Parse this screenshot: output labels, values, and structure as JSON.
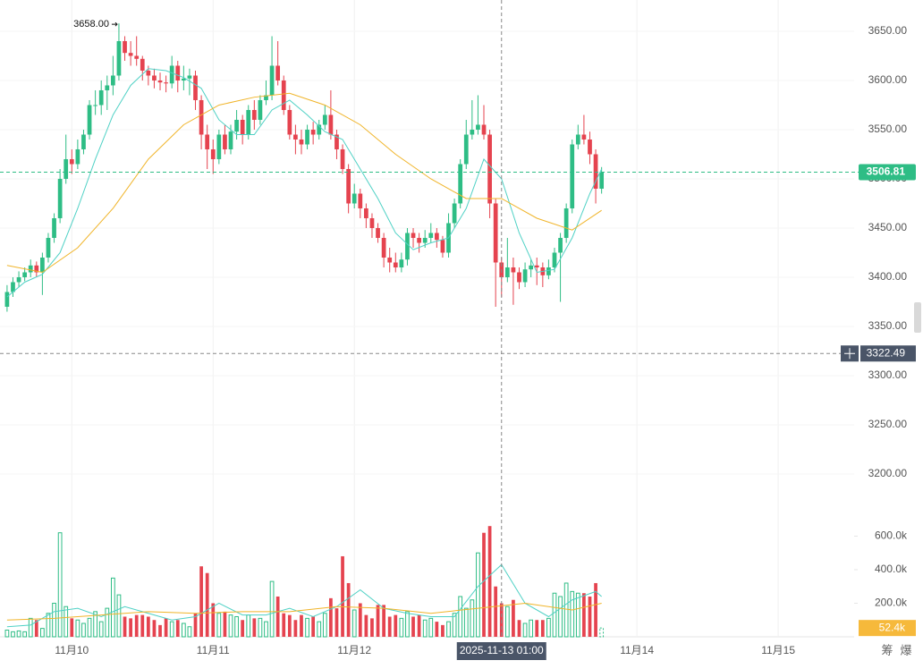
{
  "chart_data": {
    "type": "candlestick",
    "up_color": "#2ebd85",
    "down_color": "#e5434f",
    "grid": true,
    "xlim": [
      -1.2,
      143.9
    ],
    "xticks": [
      {
        "value": 11,
        "label": "11月10"
      },
      {
        "value": 35,
        "label": "11月11"
      },
      {
        "value": 59,
        "label": "11月12"
      },
      {
        "value": 107,
        "label": "11月14"
      },
      {
        "value": 131,
        "label": "11月15"
      }
    ],
    "ylim": [
      3150,
      3681.8
    ],
    "yticks": [
      {
        "value": 3200,
        "label": "3200.00"
      },
      {
        "value": 3250,
        "label": "3250.00"
      },
      {
        "value": 3300,
        "label": "3300.00"
      },
      {
        "value": 3350,
        "label": "3350.00"
      },
      {
        "value": 3400,
        "label": "3400.00"
      },
      {
        "value": 3450,
        "label": "3450.00"
      },
      {
        "value": 3500,
        "label": "3500.00"
      },
      {
        "value": 3550,
        "label": "3550.00"
      },
      {
        "value": 3600,
        "label": "3600.00"
      },
      {
        "value": 3650,
        "label": "3650.00"
      }
    ],
    "vlim": [
      0,
      677
    ],
    "vticks": [
      {
        "value": 200,
        "label": "200.0k"
      },
      {
        "value": 400,
        "label": "400.0k"
      },
      {
        "value": 600,
        "label": "600.0k"
      }
    ],
    "open": [
      3370,
      3385,
      3395,
      3400,
      3405,
      3412,
      3405,
      3420,
      3440,
      3460,
      3500,
      3520,
      3515,
      3530,
      3545,
      3575,
      3575,
      3590,
      3595,
      3605,
      3640,
      3628,
      3625,
      3622,
      3610,
      3605,
      3600,
      3598,
      3597,
      3615,
      3600,
      3602,
      3605,
      3580,
      3545,
      3530,
      3520,
      3545,
      3530,
      3548,
      3560,
      3545,
      3570,
      3560,
      3580,
      3585,
      3615,
      3600,
      3570,
      3545,
      3540,
      3535,
      3550,
      3545,
      3555,
      3565,
      3545,
      3530,
      3510,
      3475,
      3485,
      3470,
      3460,
      3450,
      3440,
      3420,
      3415,
      3410,
      3418,
      3445,
      3440,
      3435,
      3440,
      3445,
      3438,
      3425,
      3455,
      3475,
      3515,
      3545,
      3550,
      3555,
      3545,
      3475,
      3415,
      3400,
      3410,
      3405,
      3395,
      3408,
      3412,
      3410,
      3402,
      3410,
      3425,
      3440,
      3470,
      3535,
      3545,
      3540,
      3525,
      3490
    ],
    "high": [
      3392,
      3400,
      3406,
      3410,
      3418,
      3416,
      3425,
      3445,
      3465,
      3510,
      3545,
      3530,
      3540,
      3550,
      3580,
      3590,
      3600,
      3605,
      3625,
      3658,
      3645,
      3640,
      3645,
      3625,
      3615,
      3612,
      3608,
      3605,
      3625,
      3620,
      3615,
      3612,
      3610,
      3585,
      3555,
      3540,
      3550,
      3555,
      3555,
      3570,
      3565,
      3575,
      3580,
      3585,
      3600,
      3645,
      3640,
      3605,
      3575,
      3555,
      3550,
      3555,
      3558,
      3560,
      3575,
      3590,
      3550,
      3535,
      3515,
      3495,
      3490,
      3475,
      3465,
      3455,
      3445,
      3430,
      3425,
      3425,
      3450,
      3450,
      3445,
      3448,
      3455,
      3450,
      3442,
      3465,
      3480,
      3520,
      3560,
      3580,
      3585,
      3575,
      3550,
      3480,
      3420,
      3440,
      3420,
      3410,
      3415,
      3418,
      3420,
      3415,
      3418,
      3430,
      3445,
      3475,
      3540,
      3555,
      3565,
      3548,
      3530,
      3512
    ],
    "low": [
      3365,
      3380,
      3390,
      3396,
      3400,
      3400,
      3382,
      3415,
      3435,
      3455,
      3495,
      3505,
      3510,
      3525,
      3540,
      3565,
      3565,
      3570,
      3585,
      3600,
      3620,
      3615,
      3615,
      3600,
      3595,
      3592,
      3590,
      3588,
      3592,
      3588,
      3590,
      3585,
      3570,
      3530,
      3510,
      3505,
      3515,
      3525,
      3525,
      3540,
      3535,
      3540,
      3550,
      3555,
      3575,
      3580,
      3595,
      3565,
      3540,
      3525,
      3525,
      3530,
      3535,
      3540,
      3550,
      3540,
      3520,
      3505,
      3465,
      3470,
      3460,
      3450,
      3440,
      3435,
      3410,
      3405,
      3405,
      3405,
      3412,
      3430,
      3425,
      3430,
      3435,
      3430,
      3420,
      3420,
      3450,
      3470,
      3510,
      3540,
      3545,
      3540,
      3460,
      3370,
      3380,
      3395,
      3372,
      3388,
      3390,
      3400,
      3392,
      3390,
      3398,
      3405,
      3375,
      3435,
      3465,
      3530,
      3535,
      3515,
      3475,
      3485
    ],
    "close": [
      3385,
      3395,
      3400,
      3405,
      3412,
      3405,
      3420,
      3440,
      3460,
      3500,
      3520,
      3515,
      3530,
      3545,
      3575,
      3575,
      3590,
      3595,
      3605,
      3640,
      3628,
      3625,
      3622,
      3610,
      3605,
      3600,
      3598,
      3597,
      3615,
      3600,
      3602,
      3605,
      3580,
      3545,
      3530,
      3520,
      3545,
      3530,
      3548,
      3560,
      3545,
      3570,
      3560,
      3580,
      3585,
      3615,
      3600,
      3570,
      3545,
      3540,
      3535,
      3550,
      3545,
      3555,
      3565,
      3545,
      3530,
      3510,
      3475,
      3485,
      3470,
      3460,
      3450,
      3440,
      3420,
      3415,
      3410,
      3418,
      3445,
      3440,
      3435,
      3440,
      3445,
      3438,
      3425,
      3455,
      3475,
      3515,
      3545,
      3550,
      3555,
      3545,
      3475,
      3415,
      3400,
      3410,
      3405,
      3395,
      3408,
      3412,
      3410,
      3402,
      3410,
      3425,
      3440,
      3470,
      3535,
      3545,
      3540,
      3525,
      3490,
      3506.81
    ],
    "volume": [
      40,
      30,
      35,
      30,
      110,
      100,
      50,
      140,
      200,
      620,
      180,
      110,
      100,
      80,
      110,
      150,
      90,
      170,
      350,
      250,
      120,
      110,
      130,
      130,
      120,
      100,
      70,
      110,
      90,
      100,
      80,
      60,
      140,
      420,
      380,
      200,
      140,
      150,
      130,
      120,
      100,
      130,
      110,
      110,
      90,
      330,
      240,
      140,
      130,
      100,
      130,
      110,
      120,
      90,
      140,
      230,
      170,
      480,
      320,
      160,
      200,
      130,
      110,
      190,
      190,
      120,
      130,
      110,
      150,
      120,
      130,
      100,
      110,
      90,
      70,
      90,
      140,
      240,
      170,
      220,
      500,
      620,
      660,
      300,
      200,
      180,
      220,
      100,
      80,
      100,
      100,
      100,
      110,
      260,
      240,
      320,
      270,
      260,
      260,
      240,
      320,
      52.4
    ],
    "last_volume_label": "52.4k",
    "high_marker": {
      "index": 19,
      "label": "3658.00"
    },
    "crosshair": {
      "x": 84,
      "x_label": "2025-11-13 01:00",
      "y": 3322.49
    },
    "price_ma": [
      {
        "color": "#4fd1c5",
        "x": [
          0,
          3,
          6,
          9,
          12,
          15,
          18,
          21,
          24,
          27,
          30,
          33,
          36,
          39,
          42,
          45,
          48,
          51,
          54,
          57,
          60,
          63,
          66,
          69,
          72,
          75,
          78,
          81,
          84,
          87,
          90,
          93,
          96,
          99,
          101
        ],
        "values": [
          3380,
          3395,
          3403,
          3425,
          3470,
          3520,
          3565,
          3595,
          3612,
          3610,
          3603,
          3592,
          3560,
          3545,
          3545,
          3570,
          3580,
          3565,
          3548,
          3540,
          3510,
          3480,
          3445,
          3428,
          3435,
          3440,
          3470,
          3520,
          3500,
          3445,
          3405,
          3408,
          3440,
          3485,
          3510
        ]
      },
      {
        "color": "#f0b429",
        "x": [
          0,
          6,
          12,
          18,
          24,
          30,
          36,
          42,
          48,
          54,
          60,
          66,
          72,
          78,
          84,
          90,
          96,
          101
        ],
        "values": [
          3412,
          3405,
          3430,
          3470,
          3520,
          3555,
          3575,
          3583,
          3587,
          3575,
          3555,
          3525,
          3500,
          3480,
          3480,
          3460,
          3448,
          3468
        ]
      }
    ],
    "volume_ma": [
      {
        "color": "#4fd1c5",
        "x": [
          0,
          4,
          8,
          12,
          16,
          20,
          24,
          28,
          32,
          36,
          40,
          44,
          48,
          52,
          56,
          60,
          64,
          68,
          72,
          76,
          80,
          84,
          88,
          92,
          96,
          100,
          101
        ],
        "values": [
          60,
          70,
          150,
          170,
          120,
          180,
          140,
          100,
          120,
          200,
          130,
          130,
          170,
          120,
          180,
          280,
          170,
          140,
          120,
          120,
          300,
          430,
          200,
          120,
          220,
          270,
          240
        ]
      },
      {
        "color": "#f0b429",
        "x": [
          0,
          8,
          16,
          24,
          32,
          40,
          48,
          56,
          64,
          72,
          80,
          88,
          96,
          101
        ],
        "values": [
          100,
          110,
          130,
          150,
          140,
          150,
          150,
          180,
          170,
          140,
          170,
          200,
          160,
          200
        ]
      }
    ],
    "side_buttons": [
      "筹",
      "爆"
    ]
  }
}
